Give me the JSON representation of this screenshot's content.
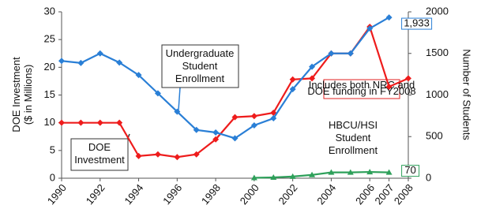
{
  "chart_data": {
    "type": "line",
    "ylabel": [
      "DOE Investment",
      "($ in Millions)"
    ],
    "y2label": "Number of Students",
    "x": [
      1990,
      1991,
      1992,
      1993,
      1994,
      1995,
      1996,
      1997,
      1998,
      1999,
      2000,
      2001,
      2002,
      2003,
      2004,
      2005,
      2006,
      2007,
      2008
    ],
    "xlim": [
      1990,
      2008
    ],
    "xticks": [
      1990,
      1992,
      1994,
      1996,
      1998,
      2000,
      2002,
      2004,
      2006,
      2007,
      2008
    ],
    "ylim": [
      0,
      30
    ],
    "yticks": [
      0,
      5,
      10,
      15,
      20,
      25,
      30
    ],
    "y2lim": [
      0,
      2000
    ],
    "y2ticks": [
      0,
      500,
      1000,
      1500,
      2000
    ],
    "series": [
      {
        "color": "#ee1c1c",
        "marker": "diamond",
        "axis": "y",
        "values": [
          10,
          10,
          10,
          10,
          4,
          4.3,
          3.8,
          4.3,
          7,
          11,
          11.2,
          11.8,
          17.8,
          18,
          22.5,
          22.5,
          27.3,
          16.5,
          18
        ]
      },
      {
        "color": "#2a7fd6",
        "marker": "diamond",
        "axis": "y2",
        "values": [
          1410,
          1385,
          1500,
          1390,
          1240,
          1020,
          800,
          580,
          550,
          480,
          635,
          720,
          1070,
          1340,
          1500,
          1500,
          1800,
          1933,
          null
        ],
        "value_labels": [
          null,
          null,
          null,
          null,
          null,
          null,
          null,
          null,
          null,
          null,
          null,
          null,
          null,
          null,
          null,
          null,
          null,
          "1,933",
          null
        ]
      },
      {
        "color": "#2ea05a",
        "marker": "triangle",
        "axis": "y2",
        "values": [
          null,
          null,
          null,
          null,
          null,
          null,
          null,
          null,
          null,
          null,
          5,
          10,
          20,
          40,
          70,
          70,
          75,
          70,
          null
        ],
        "value_labels": [
          null,
          null,
          null,
          null,
          null,
          null,
          null,
          null,
          null,
          null,
          null,
          null,
          null,
          null,
          null,
          null,
          null,
          "70",
          null
        ]
      }
    ],
    "annotations": [
      {
        "lines": [
          "Undergraduate",
          "Student",
          "Enrollment"
        ]
      },
      {
        "lines": [
          "DOE",
          "Investment"
        ]
      },
      {
        "lines": [
          "HBCU/HSI",
          "Student",
          "Enrollment"
        ]
      },
      {
        "lines": [
          "Includes both NRC and",
          "DOE funding in FY2008"
        ]
      }
    ]
  }
}
